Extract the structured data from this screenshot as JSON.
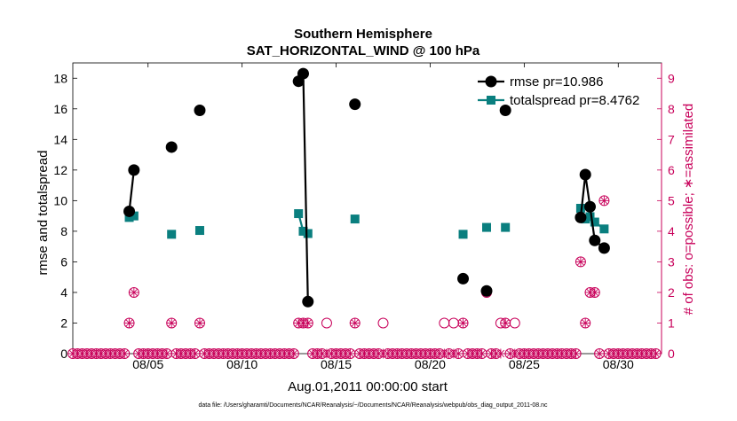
{
  "chart_data": {
    "type": "line",
    "title": "Southern Hemisphere",
    "subtitle": "SAT_HORIZONTAL_WIND @ 100 hPa",
    "xlabel": "Aug.01,2011 00:00:00 start",
    "ylabel": "rmse and totalspread",
    "y2label": "# of obs: o=possible; ∗=assimilated",
    "footnote": "data file: /Users/gharamti/Documents/NCAR/Reanalysis/~/Documents/NCAR/Reanalysis/webpub/obs_diag_output_2011-08.nc",
    "xlim": [
      1,
      32.3
    ],
    "ylim": [
      0,
      19
    ],
    "y2lim": [
      0,
      9.5
    ],
    "xticks": [
      5,
      10,
      15,
      20,
      25,
      30
    ],
    "xtick_labels": [
      "08/05",
      "08/10",
      "08/15",
      "08/20",
      "08/25",
      "08/30"
    ],
    "yticks": [
      0,
      2,
      4,
      6,
      8,
      10,
      12,
      14,
      16,
      18
    ],
    "y2ticks": [
      0,
      1,
      2,
      3,
      4,
      5,
      6,
      7,
      8,
      9
    ],
    "legend_position": "top-right",
    "colors": {
      "rmse": "#000000",
      "spread": "#0a7f7f",
      "obs": "#c8005a"
    },
    "series": [
      {
        "name": "rmse pr=10.986",
        "marker": "circle",
        "segments": [
          [
            [
              4.0,
              9.3
            ],
            [
              4.25,
              12.0
            ]
          ],
          [
            [
              6.25,
              13.5
            ]
          ],
          [
            [
              7.75,
              15.9
            ]
          ],
          [
            [
              13.0,
              17.8
            ],
            [
              13.25,
              18.3
            ],
            [
              13.5,
              3.4
            ]
          ],
          [
            [
              16.0,
              16.3
            ]
          ],
          [
            [
              21.75,
              4.9
            ]
          ],
          [
            [
              23.0,
              4.1
            ]
          ],
          [
            [
              24.0,
              15.9
            ]
          ],
          [
            [
              28.0,
              8.9
            ],
            [
              28.25,
              11.7
            ],
            [
              28.5,
              9.6
            ],
            [
              28.75,
              7.4
            ],
            [
              29.25,
              6.9
            ]
          ]
        ]
      },
      {
        "name": "totalspread pr=8.4762",
        "marker": "square",
        "segments": [
          [
            [
              4.0,
              8.9
            ],
            [
              4.25,
              9.0
            ]
          ],
          [
            [
              6.25,
              7.8
            ]
          ],
          [
            [
              7.75,
              8.05
            ]
          ],
          [
            [
              13.0,
              9.15
            ],
            [
              13.25,
              8.0
            ],
            [
              13.5,
              7.85
            ]
          ],
          [
            [
              16.0,
              8.8
            ]
          ],
          [
            [
              21.75,
              7.8
            ]
          ],
          [
            [
              23.0,
              8.25
            ]
          ],
          [
            [
              24.0,
              8.25
            ]
          ],
          [
            [
              28.0,
              9.5
            ],
            [
              28.25,
              8.8
            ],
            [
              28.5,
              8.95
            ],
            [
              28.75,
              8.6
            ],
            [
              29.25,
              8.15
            ]
          ]
        ]
      }
    ],
    "obs_possible_nonzero": [
      [
        4.0,
        1
      ],
      [
        4.25,
        2
      ],
      [
        6.25,
        1
      ],
      [
        7.75,
        1
      ],
      [
        13.0,
        1
      ],
      [
        13.25,
        1
      ],
      [
        13.5,
        1
      ],
      [
        14.5,
        1
      ],
      [
        16.0,
        1
      ],
      [
        17.5,
        1
      ],
      [
        20.75,
        1
      ],
      [
        21.25,
        1
      ],
      [
        21.75,
        1
      ],
      [
        23.0,
        2
      ],
      [
        23.75,
        1
      ],
      [
        24.0,
        1
      ],
      [
        24.5,
        1
      ],
      [
        28.0,
        3
      ],
      [
        28.25,
        1
      ],
      [
        28.5,
        2
      ],
      [
        28.75,
        2
      ],
      [
        29.25,
        5
      ]
    ],
    "obs_assimilated_nonzero": [
      [
        4.0,
        1
      ],
      [
        4.25,
        2
      ],
      [
        6.25,
        1
      ],
      [
        7.75,
        1
      ],
      [
        13.0,
        1
      ],
      [
        13.25,
        1
      ],
      [
        13.5,
        1
      ],
      [
        16.0,
        1
      ],
      [
        21.75,
        1
      ],
      [
        23.0,
        2
      ],
      [
        24.0,
        1
      ],
      [
        28.0,
        3
      ],
      [
        28.25,
        1
      ],
      [
        28.5,
        2
      ],
      [
        28.75,
        2
      ],
      [
        29.25,
        5
      ]
    ]
  }
}
